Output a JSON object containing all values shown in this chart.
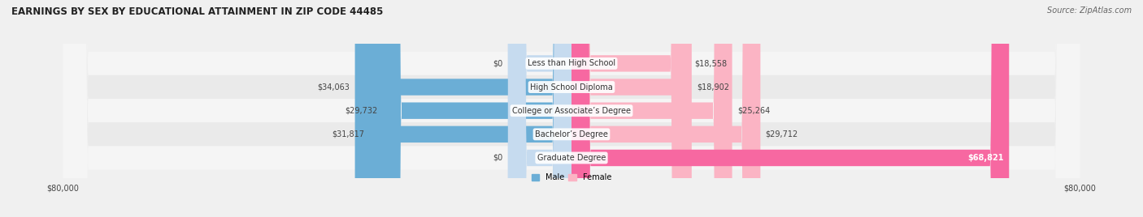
{
  "title": "EARNINGS BY SEX BY EDUCATIONAL ATTAINMENT IN ZIP CODE 44485",
  "source": "Source: ZipAtlas.com",
  "categories": [
    "Less than High School",
    "High School Diploma",
    "College or Associate’s Degree",
    "Bachelor’s Degree",
    "Graduate Degree"
  ],
  "male_values": [
    0,
    34063,
    29732,
    31817,
    0
  ],
  "female_values": [
    18558,
    18902,
    25264,
    29712,
    68821
  ],
  "max_val": 80000,
  "male_color": "#6baed6",
  "male_color_light": "#c6dbef",
  "female_color": "#f768a1",
  "female_color_light": "#fbb4c4",
  "row_colors": [
    "#f5f5f5",
    "#eaeaea",
    "#f5f5f5",
    "#eaeaea",
    "#f5f5f5"
  ],
  "bg_color": "#f0f0f0",
  "label_fontsize": 7.0,
  "title_fontsize": 8.5,
  "source_fontsize": 7.0,
  "value_color": "#444444",
  "cat_label_color": "#333333"
}
